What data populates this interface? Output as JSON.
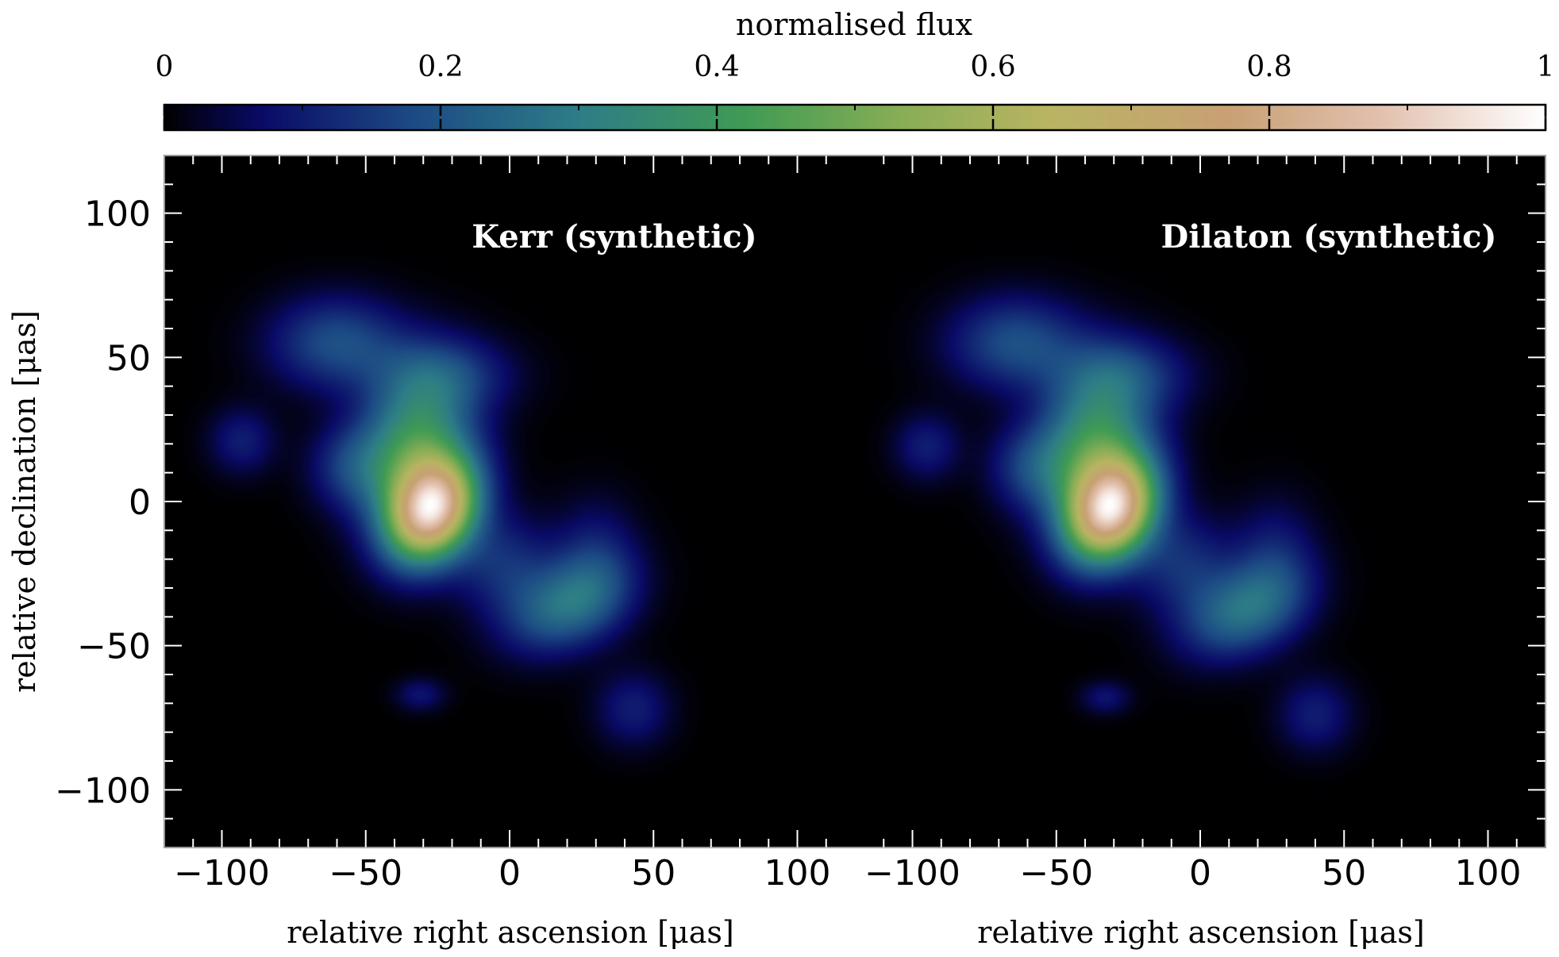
{
  "colorbar": {
    "label": "normalised flux",
    "ticks": [
      "0",
      "0.2",
      "0.4",
      "0.6",
      "0.8",
      "1"
    ],
    "tick_values": [
      0,
      0.2,
      0.4,
      0.6,
      0.8,
      1
    ],
    "colormap_stops": [
      {
        "value": 0.0,
        "color": "#000000"
      },
      {
        "value": 0.07,
        "color": "#0a0a66"
      },
      {
        "value": 0.18,
        "color": "#1c4a84"
      },
      {
        "value": 0.3,
        "color": "#2d7d87"
      },
      {
        "value": 0.42,
        "color": "#3f9b54"
      },
      {
        "value": 0.53,
        "color": "#86ad55"
      },
      {
        "value": 0.64,
        "color": "#b9b462"
      },
      {
        "value": 0.77,
        "color": "#c8a074"
      },
      {
        "value": 0.88,
        "color": "#e2c0ae"
      },
      {
        "value": 1.0,
        "color": "#ffffff"
      }
    ]
  },
  "chart_data": [
    {
      "type": "heatmap",
      "title": "Kerr (synthetic)",
      "xlabel": "relative right ascension [μas]",
      "ylabel": "relative declination [μas]",
      "xlim": [
        -120,
        120
      ],
      "ylim": [
        -120,
        120
      ],
      "xticks": [
        -100,
        -50,
        0,
        50,
        100
      ],
      "yticks": [
        100,
        50,
        0,
        -50,
        -100
      ],
      "xtick_labels": [
        "−100",
        "−50",
        "0",
        "50",
        "100"
      ],
      "ytick_labels": [
        "100",
        "50",
        "0",
        "−50",
        "−100"
      ],
      "peak": {
        "x": -27,
        "y": -3,
        "flux": 1.0
      },
      "components": [
        {
          "x": -27,
          "y": -3,
          "flux": 1.0,
          "sx": 10,
          "sy": 13,
          "angle": -30
        },
        {
          "x": -33,
          "y": 20,
          "flux": 0.45,
          "sx": 13,
          "sy": 18,
          "angle": -15
        },
        {
          "x": -60,
          "y": 55,
          "flux": 0.22,
          "sx": 16,
          "sy": 11,
          "angle": 0
        },
        {
          "x": -22,
          "y": 44,
          "flux": 0.15,
          "sx": 16,
          "sy": 9,
          "angle": 0
        },
        {
          "x": -93,
          "y": 21,
          "flux": 0.12,
          "sx": 8,
          "sy": 8,
          "angle": 0
        },
        {
          "x": 20,
          "y": -36,
          "flux": 0.3,
          "sx": 15,
          "sy": 10,
          "angle": 25
        },
        {
          "x": 30,
          "y": -20,
          "flux": 0.12,
          "sx": 10,
          "sy": 14,
          "angle": 0
        },
        {
          "x": 43,
          "y": -72,
          "flux": 0.12,
          "sx": 9,
          "sy": 9,
          "angle": 0
        },
        {
          "x": -31,
          "y": -67,
          "flux": 0.1,
          "sx": 6,
          "sy": 4,
          "angle": 0
        },
        {
          "x": -55,
          "y": 12,
          "flux": 0.15,
          "sx": 10,
          "sy": 10,
          "angle": 0
        },
        {
          "x": -2,
          "y": -22,
          "flux": 0.15,
          "sx": 12,
          "sy": 12,
          "angle": 0
        }
      ]
    },
    {
      "type": "heatmap",
      "title": "Dilaton (synthetic)",
      "xlabel": "relative right ascension [μas]",
      "ylabel": "",
      "xlim": [
        -120,
        120
      ],
      "ylim": [
        -120,
        120
      ],
      "xticks": [
        -100,
        -50,
        0,
        50,
        100
      ],
      "xtick_labels": [
        "−100",
        "−50",
        "0",
        "50",
        "100"
      ],
      "peak": {
        "x": -31,
        "y": -3,
        "flux": 1.0
      },
      "components": [
        {
          "x": -31,
          "y": -3,
          "flux": 1.0,
          "sx": 10,
          "sy": 13,
          "angle": -30
        },
        {
          "x": -37,
          "y": 20,
          "flux": 0.45,
          "sx": 13,
          "sy": 18,
          "angle": -15
        },
        {
          "x": -64,
          "y": 55,
          "flux": 0.22,
          "sx": 16,
          "sy": 11,
          "angle": 0
        },
        {
          "x": -26,
          "y": 44,
          "flux": 0.15,
          "sx": 16,
          "sy": 9,
          "angle": 0
        },
        {
          "x": -95,
          "y": 19,
          "flux": 0.12,
          "sx": 8,
          "sy": 8,
          "angle": 0
        },
        {
          "x": 15,
          "y": -38,
          "flux": 0.3,
          "sx": 15,
          "sy": 10,
          "angle": 25
        },
        {
          "x": 26,
          "y": -20,
          "flux": 0.12,
          "sx": 10,
          "sy": 14,
          "angle": 0
        },
        {
          "x": 40,
          "y": -74,
          "flux": 0.12,
          "sx": 9,
          "sy": 9,
          "angle": 0
        },
        {
          "x": -33,
          "y": -68,
          "flux": 0.1,
          "sx": 6,
          "sy": 4,
          "angle": 0
        },
        {
          "x": -59,
          "y": 12,
          "flux": 0.15,
          "sx": 10,
          "sy": 10,
          "angle": 0
        },
        {
          "x": -6,
          "y": -22,
          "flux": 0.15,
          "sx": 12,
          "sy": 12,
          "angle": 0
        }
      ]
    }
  ]
}
